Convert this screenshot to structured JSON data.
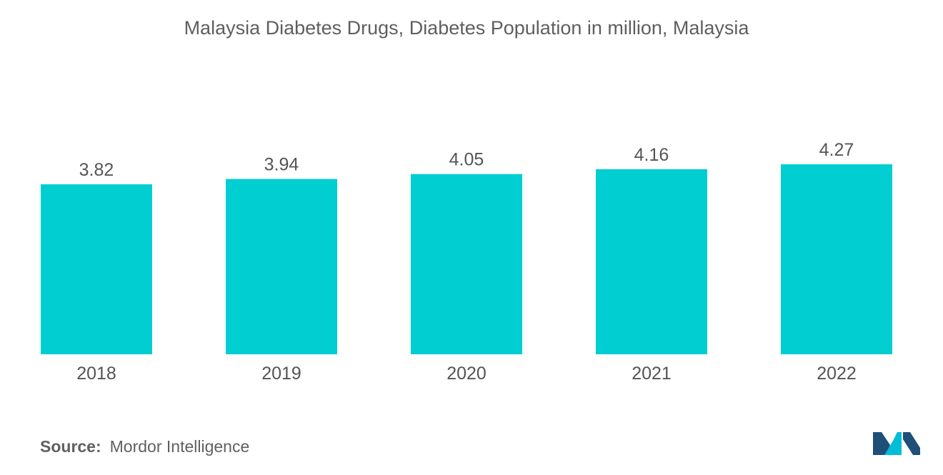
{
  "colors": {
    "bar": "#00CED1",
    "text": "#5f5f5f",
    "logo_dark": "#1f4e79",
    "logo_light": "#00bcd4"
  },
  "logo_icon": "mordor-intelligence-logo-icon",
  "source": {
    "label": "Source:",
    "value": "Mordor Intelligence"
  },
  "chart_data": {
    "type": "bar",
    "title": "Malaysia Diabetes Drugs, Diabetes Population in million, Malaysia",
    "categories": [
      "2018",
      "2019",
      "2020",
      "2021",
      "2022"
    ],
    "values": [
      3.82,
      3.94,
      4.05,
      4.16,
      4.27
    ],
    "data_labels": [
      "3.82",
      "3.94",
      "4.05",
      "4.16",
      "4.27"
    ],
    "xlabel": "",
    "ylabel": "",
    "ylim": [
      0,
      4.27
    ],
    "grid": false,
    "legend": "none"
  }
}
